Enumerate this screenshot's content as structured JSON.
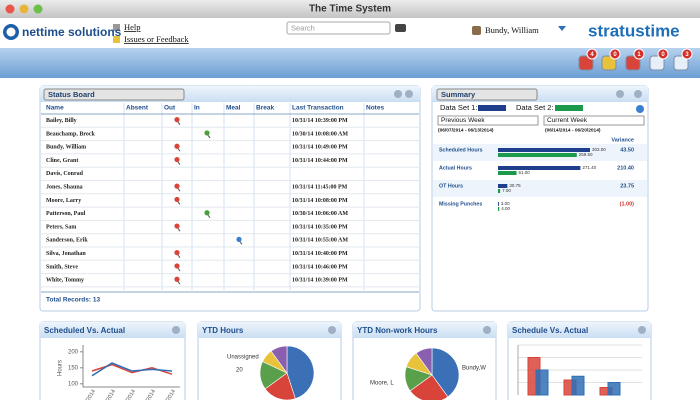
{
  "window_title": "The Time System",
  "header": {
    "logo": "nettime solutions",
    "links": [
      "Help",
      "Issues or Feedback"
    ],
    "search_placeholder": "Search",
    "user": "Bundy, William",
    "brand": "stratustime",
    "badges": [
      "4",
      "0",
      "1",
      "0",
      "3"
    ]
  },
  "status_board": {
    "title": "Status Board",
    "columns": [
      "Name",
      "Absent",
      "Out",
      "In",
      "Meal",
      "Break",
      "Last Transaction",
      "Notes"
    ],
    "rows": [
      [
        "Bailey, Billy",
        "10/31/14 10:39:00 PM"
      ],
      [
        "Beauchamp, Brock",
        "10/30/14 10:08:00 AM"
      ],
      [
        "Bundy, William",
        "10/31/14 10:49:00 PM"
      ],
      [
        "Cline, Grant",
        "10/31/14 10:44:00 PM"
      ],
      [
        "Davis, Conrad",
        null
      ],
      [
        "Jones, Shauna",
        "10/31/14 11:45:00 PM"
      ],
      [
        "Moore, Larry",
        "10/31/14 10:08:00 PM"
      ],
      [
        "Patterson, Paul",
        "10/30/14 10:06:00 AM"
      ],
      [
        "Peters, Sam",
        "10/31/14 10:35:00 PM"
      ],
      [
        "Sanderson, Erik",
        "10/31/14 10:55:00 AM"
      ],
      [
        "Silva, Jonathan",
        "10/31/14 10:40:00 PM"
      ],
      [
        "Smith, Steve",
        "10/31/14 10:46:00 PM"
      ],
      [
        "White, Tommy",
        "10/31/14 10:39:00 PM"
      ]
    ],
    "total": "Total Records: 13"
  },
  "summary": {
    "title": "Summary",
    "set1": "Data Set 1:",
    "set2": "Data Set 2:",
    "period1": "Previous Week",
    "period2": "Current Week",
    "range1": "(06/07/2014 - 06/13/2014)",
    "range2": "(06/14/2014 - 06/20/2014)",
    "variance_header": "Variance",
    "colors": [
      "#1f3f8c",
      "#1a9a4a"
    ],
    "rows": [
      {
        "label": "Scheduled Hours",
        "values": [
          303,
          259.5
        ],
        "value_labels": [
          "303.00",
          "259.50"
        ],
        "variance": "43.50"
      },
      {
        "label": "Actual Hours",
        "values": [
          271.4,
          61
        ],
        "value_labels": [
          "271.40",
          "61.00"
        ],
        "variance": "210.40"
      },
      {
        "label": "OT Hours",
        "values": [
          30.75,
          7
        ],
        "value_labels": [
          "30.75",
          "7.00"
        ],
        "variance": "23.75"
      },
      {
        "label": "Missing Punches",
        "values": [
          3,
          4
        ],
        "value_labels": [
          "3.00",
          "4.00"
        ],
        "variance": "(1.00)"
      }
    ]
  },
  "line_panel": {
    "title": "Scheduled Vs. Actual",
    "y_label": "Hours",
    "categories": [
      "6/01/2014",
      "6/08/2014",
      "6/15/2014",
      "6/22/2014",
      "6/29/2014"
    ],
    "ylim": [
      90,
      210
    ],
    "yticks": [
      100,
      150,
      200
    ],
    "series": [
      {
        "color": "#d9443a",
        "values": [
          140,
          160,
          135,
          150,
          130
        ]
      },
      {
        "color": "#2f6fb5",
        "values": [
          125,
          165,
          140,
          145,
          140
        ]
      }
    ]
  },
  "pie_panel_1": {
    "title": "YTD Hours",
    "labels": [
      "Unassigned",
      "20"
    ],
    "values": [
      45,
      20,
      17,
      8,
      10
    ],
    "colors": [
      "#3b6fb6",
      "#d9443a",
      "#5aa04a",
      "#e8c23a",
      "#8a5fb0"
    ]
  },
  "pie_panel_2": {
    "title": "YTD Non-work Hours",
    "labels": [
      "Bundy,W",
      "Moore, L"
    ],
    "values": [
      40,
      25,
      15,
      10,
      10
    ],
    "colors": [
      "#3b6fb6",
      "#d9443a",
      "#5aa04a",
      "#e8c23a",
      "#8a5fb0"
    ]
  },
  "bar_panel": {
    "title": "Schedule Vs. Actual",
    "ylim": [
      0,
      40
    ],
    "series": [
      {
        "color": "#d9443a",
        "values": [
          30,
          12,
          6
        ]
      },
      {
        "color": "#2f6fb5",
        "values": [
          20,
          15,
          10
        ]
      }
    ]
  }
}
